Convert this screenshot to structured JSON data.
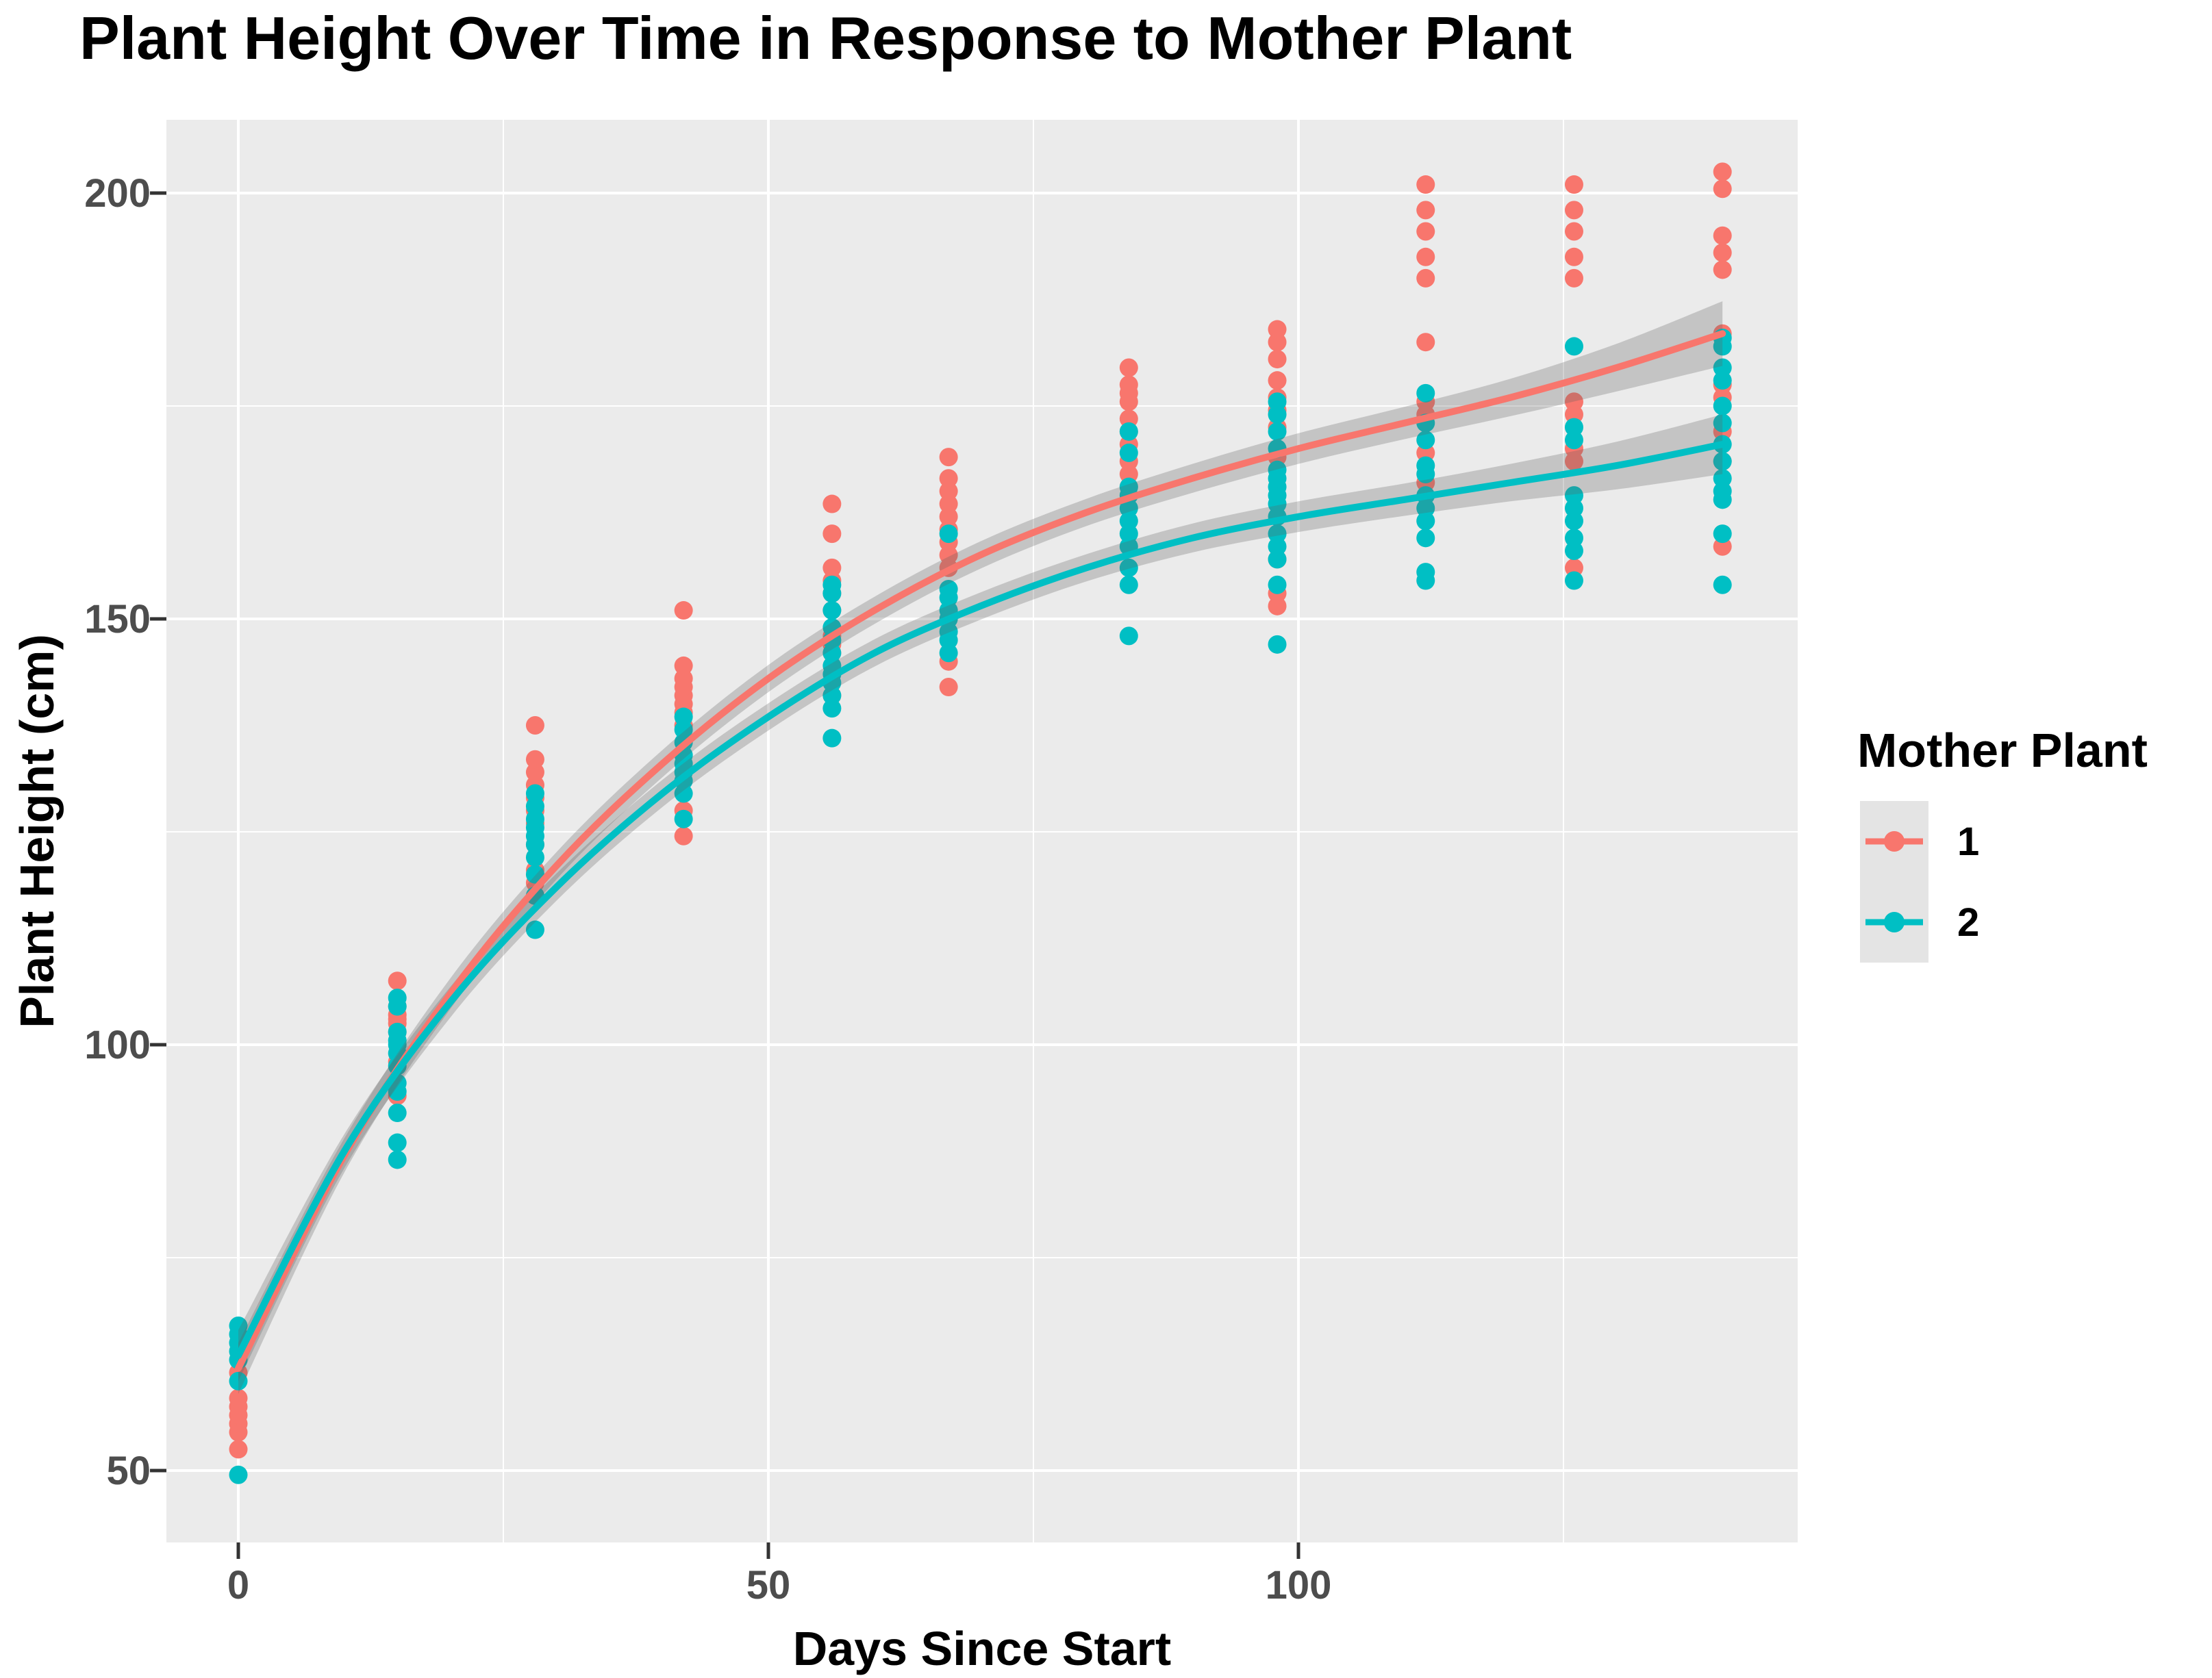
{
  "title": "Plant Height Over Time in Response to Mother Plant",
  "chart_data": {
    "type": "scatter",
    "title": "Plant Height Over Time in Response to Mother Plant",
    "xlabel": "Days Since Start",
    "ylabel": "Plant Height (cm)",
    "xlim": [
      -7,
      147
    ],
    "ylim": [
      41.5,
      208.5
    ],
    "x_ticks": [
      "0",
      "50",
      "100"
    ],
    "x_tick_values": [
      0,
      50,
      100
    ],
    "y_ticks": [
      "50",
      "100",
      "150",
      "200"
    ],
    "y_tick_values": [
      50,
      100,
      150,
      200
    ],
    "x_minor_values": [
      25,
      75,
      125
    ],
    "y_minor_values": [
      75,
      125,
      175
    ],
    "grid": true,
    "panel_bg": "#EBEBEB",
    "grid_color": "#FFFFFF",
    "tick_mark_color": "#333333",
    "ribbon_color": "rgba(96,96,96,0.28)",
    "legend": {
      "title": "Mother Plant",
      "position": "right",
      "key_bg": "#E4E4E4",
      "items": [
        {
          "label": "1",
          "color": "#F8766D"
        },
        {
          "label": "2",
          "color": "#00BFC4"
        }
      ]
    },
    "smooth_x": [
      0,
      10,
      20,
      30,
      40,
      50,
      60,
      70,
      80,
      90,
      100,
      110,
      120,
      130,
      140
    ],
    "series": [
      {
        "name": "1",
        "color": "#F8766D",
        "smooth_y": [
          62,
          87,
          106,
          121,
          133,
          143,
          151,
          157.5,
          162.5,
          166.5,
          170,
          173,
          176,
          179.5,
          183.5
        ],
        "ribbon_halfwidth": [
          3,
          2,
          1.8,
          1.6,
          1.6,
          1.6,
          1.6,
          1.6,
          1.6,
          1.7,
          1.8,
          1.9,
          2.2,
          2.8,
          3.8
        ],
        "points": [
          [
            0,
            52.5
          ],
          [
            0,
            54.5
          ],
          [
            0,
            55.5
          ],
          [
            0,
            56.5
          ],
          [
            0,
            57.5
          ],
          [
            0,
            58.5
          ],
          [
            0,
            61.5
          ],
          [
            15,
            94
          ],
          [
            15,
            98
          ],
          [
            15,
            101.5
          ],
          [
            15,
            102.5
          ],
          [
            15,
            103
          ],
          [
            15,
            103.5
          ],
          [
            15,
            104.5
          ],
          [
            15,
            107.5
          ],
          [
            28,
            117.5
          ],
          [
            28,
            119
          ],
          [
            28,
            120.5
          ],
          [
            28,
            123.5
          ],
          [
            28,
            126
          ],
          [
            28,
            127.5
          ],
          [
            28,
            129
          ],
          [
            28,
            130.5
          ],
          [
            28,
            132
          ],
          [
            28,
            133.5
          ],
          [
            28,
            137.5
          ],
          [
            42,
            124.5
          ],
          [
            42,
            127.5
          ],
          [
            42,
            137.5
          ],
          [
            42,
            139
          ],
          [
            42,
            140
          ],
          [
            42,
            141
          ],
          [
            42,
            142
          ],
          [
            42,
            143
          ],
          [
            42,
            144.5
          ],
          [
            42,
            151
          ],
          [
            56,
            141
          ],
          [
            56,
            146
          ],
          [
            56,
            147
          ],
          [
            56,
            148
          ],
          [
            56,
            151
          ],
          [
            56,
            153
          ],
          [
            56,
            154.5
          ],
          [
            56,
            156
          ],
          [
            56,
            160
          ],
          [
            56,
            163.5
          ],
          [
            67,
            142
          ],
          [
            67,
            145
          ],
          [
            67,
            156
          ],
          [
            67,
            157.5
          ],
          [
            67,
            159
          ],
          [
            67,
            160.5
          ],
          [
            67,
            162
          ],
          [
            67,
            163.5
          ],
          [
            67,
            165
          ],
          [
            67,
            166.5
          ],
          [
            67,
            169
          ],
          [
            84,
            165.5
          ],
          [
            84,
            167
          ],
          [
            84,
            168.5
          ],
          [
            84,
            170.5
          ],
          [
            84,
            172
          ],
          [
            84,
            173.5
          ],
          [
            84,
            175.5
          ],
          [
            84,
            176.5
          ],
          [
            84,
            177.5
          ],
          [
            84,
            179.5
          ],
          [
            98,
            151.5
          ],
          [
            98,
            153
          ],
          [
            98,
            157
          ],
          [
            98,
            169
          ],
          [
            98,
            172.5
          ],
          [
            98,
            174.5
          ],
          [
            98,
            176
          ],
          [
            98,
            178
          ],
          [
            98,
            180.5
          ],
          [
            98,
            182.5
          ],
          [
            98,
            184
          ],
          [
            112,
            166
          ],
          [
            112,
            169.5
          ],
          [
            112,
            174
          ],
          [
            112,
            175.5
          ],
          [
            112,
            182.5
          ],
          [
            112,
            190
          ],
          [
            112,
            192.5
          ],
          [
            112,
            195.5
          ],
          [
            112,
            198
          ],
          [
            112,
            201
          ],
          [
            126,
            156
          ],
          [
            126,
            168.5
          ],
          [
            126,
            170
          ],
          [
            126,
            174
          ],
          [
            126,
            175.5
          ],
          [
            126,
            190
          ],
          [
            126,
            192.5
          ],
          [
            126,
            195.5
          ],
          [
            126,
            198
          ],
          [
            126,
            201
          ],
          [
            140,
            158.5
          ],
          [
            140,
            168.5
          ],
          [
            140,
            172
          ],
          [
            140,
            176
          ],
          [
            140,
            177.5
          ],
          [
            140,
            183.5
          ],
          [
            140,
            191
          ],
          [
            140,
            193
          ],
          [
            140,
            195
          ],
          [
            140,
            200.5
          ],
          [
            140,
            202.5
          ]
        ]
      },
      {
        "name": "2",
        "color": "#00BFC4",
        "smooth_y": [
          63.5,
          87.5,
          105,
          118.5,
          129.5,
          138.5,
          146,
          151.5,
          156,
          159.5,
          162,
          164,
          166,
          168,
          170.5
        ],
        "ribbon_halfwidth": [
          3,
          2,
          1.8,
          1.6,
          1.6,
          1.6,
          1.6,
          1.6,
          1.6,
          1.7,
          1.8,
          1.9,
          2.2,
          2.8,
          3.5
        ],
        "points": [
          [
            0,
            49.5
          ],
          [
            0,
            60.5
          ],
          [
            0,
            63
          ],
          [
            0,
            64
          ],
          [
            0,
            65
          ],
          [
            0,
            66
          ],
          [
            0,
            67
          ],
          [
            15,
            86.5
          ],
          [
            15,
            88.5
          ],
          [
            15,
            92
          ],
          [
            15,
            94.5
          ],
          [
            15,
            95.5
          ],
          [
            15,
            97.5
          ],
          [
            15,
            99
          ],
          [
            15,
            100
          ],
          [
            15,
            100.5
          ],
          [
            15,
            101.5
          ],
          [
            15,
            104.5
          ],
          [
            15,
            105.5
          ],
          [
            28,
            113.5
          ],
          [
            28,
            117.5
          ],
          [
            28,
            120
          ],
          [
            28,
            122
          ],
          [
            28,
            123.5
          ],
          [
            28,
            124.5
          ],
          [
            28,
            125.5
          ],
          [
            28,
            126.5
          ],
          [
            28,
            128
          ],
          [
            28,
            129.5
          ],
          [
            42,
            126.5
          ],
          [
            42,
            129.5
          ],
          [
            42,
            131
          ],
          [
            42,
            132
          ],
          [
            42,
            133
          ],
          [
            42,
            134
          ],
          [
            42,
            135.5
          ],
          [
            42,
            137
          ],
          [
            42,
            138.5
          ],
          [
            56,
            136
          ],
          [
            56,
            139.5
          ],
          [
            56,
            141
          ],
          [
            56,
            142.5
          ],
          [
            56,
            143.5
          ],
          [
            56,
            144.5
          ],
          [
            56,
            146
          ],
          [
            56,
            147.5
          ],
          [
            56,
            149
          ],
          [
            56,
            151
          ],
          [
            56,
            153
          ],
          [
            56,
            154
          ],
          [
            67,
            146
          ],
          [
            67,
            147.5
          ],
          [
            67,
            148.5
          ],
          [
            67,
            150
          ],
          [
            67,
            151
          ],
          [
            67,
            152.5
          ],
          [
            67,
            153.5
          ],
          [
            67,
            160
          ],
          [
            84,
            148
          ],
          [
            84,
            154
          ],
          [
            84,
            156
          ],
          [
            84,
            158.5
          ],
          [
            84,
            160
          ],
          [
            84,
            161.5
          ],
          [
            84,
            163
          ],
          [
            84,
            164.5
          ],
          [
            84,
            165.5
          ],
          [
            84,
            169.5
          ],
          [
            84,
            172
          ],
          [
            98,
            147
          ],
          [
            98,
            154
          ],
          [
            98,
            157
          ],
          [
            98,
            158.5
          ],
          [
            98,
            160
          ],
          [
            98,
            162
          ],
          [
            98,
            163.5
          ],
          [
            98,
            164.5
          ],
          [
            98,
            165.5
          ],
          [
            98,
            166.5
          ],
          [
            98,
            167.5
          ],
          [
            98,
            170
          ],
          [
            98,
            172
          ],
          [
            98,
            174
          ],
          [
            98,
            175.5
          ],
          [
            112,
            154.5
          ],
          [
            112,
            155.5
          ],
          [
            112,
            159.5
          ],
          [
            112,
            161.5
          ],
          [
            112,
            163
          ],
          [
            112,
            164.5
          ],
          [
            112,
            167
          ],
          [
            112,
            168
          ],
          [
            112,
            171
          ],
          [
            112,
            173
          ],
          [
            112,
            176.5
          ],
          [
            126,
            154.5
          ],
          [
            126,
            158
          ],
          [
            126,
            159.5
          ],
          [
            126,
            161.5
          ],
          [
            126,
            163
          ],
          [
            126,
            164.5
          ],
          [
            126,
            171
          ],
          [
            126,
            172.5
          ],
          [
            126,
            182
          ],
          [
            140,
            154
          ],
          [
            140,
            160
          ],
          [
            140,
            164
          ],
          [
            140,
            165
          ],
          [
            140,
            166.5
          ],
          [
            140,
            168.5
          ],
          [
            140,
            170.5
          ],
          [
            140,
            173
          ],
          [
            140,
            175
          ],
          [
            140,
            178
          ],
          [
            140,
            179.5
          ],
          [
            140,
            182
          ],
          [
            140,
            183
          ]
        ]
      }
    ]
  }
}
